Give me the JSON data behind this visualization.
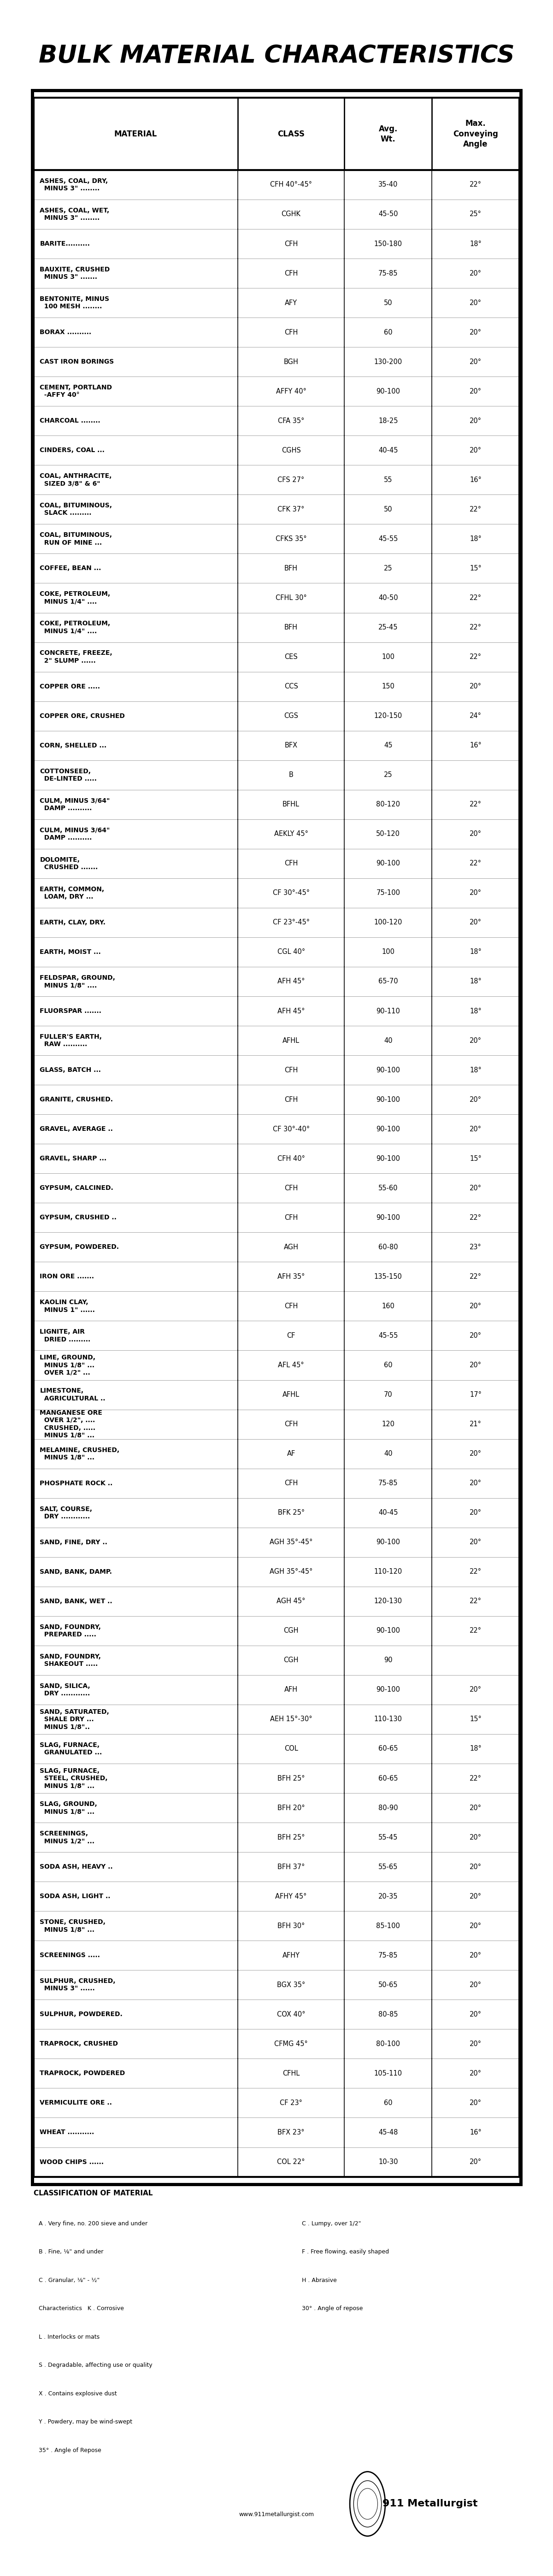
{
  "title": "BULK MATERIAL CHARACTERISTICS",
  "col_headers": [
    "MATERIAL",
    "CLASS",
    "Avg.\nWt.",
    "Max.\nConveying\nAngle"
  ],
  "rows": [
    [
      "ASHES, COAL, DRY,\n  MINUS 3\" ........",
      "CFH 40°-45°",
      "35-40",
      "22°"
    ],
    [
      "ASHES, COAL, WET,\n  MINUS 3\" ........",
      "CGHK",
      "45-50",
      "25°"
    ],
    [
      "BARITE..........",
      "CFH",
      "150-180",
      "18°"
    ],
    [
      "BAUXITE, CRUSHED\n  MINUS 3\" .......",
      "CFH",
      "75-85",
      "20°"
    ],
    [
      "BENTONITE, MINUS\n  100 MESH ........",
      "AFY",
      "50",
      "20°"
    ],
    [
      "BORAX ..........",
      "CFH",
      "60",
      "20°"
    ],
    [
      "CAST IRON BORINGS",
      "BGH",
      "130-200",
      "20°"
    ],
    [
      "CEMENT, PORTLAND\n  -AFFY 40°",
      "AFFY 40°",
      "90-100",
      "20°"
    ],
    [
      "CHARCOAL ........",
      "CFA 35°",
      "18-25",
      "20°"
    ],
    [
      "CINDERS, COAL ...",
      "CGHS",
      "40-45",
      "20°"
    ],
    [
      "COAL, ANTHRACITE,\n  SIZED 3/8\" & 6\"",
      "CFS 27°",
      "55",
      "16°"
    ],
    [
      "COAL, BITUMINOUS,\n  SLACK .........",
      "CFK 37°",
      "50",
      "22°"
    ],
    [
      "COAL, BITUMINOUS,\n  RUN OF MINE ...",
      "CFKS 35°",
      "45-55",
      "18°"
    ],
    [
      "COFFEE, BEAN ...",
      "BFH",
      "25",
      "15°"
    ],
    [
      "COKE, PETROLEUM,\n  MINUS 1/4\" ....",
      "CFHL 30°",
      "40-50",
      "22°"
    ],
    [
      "COKE, PETROLEUM,\n  MINUS 1/4\" ....",
      "BFH",
      "25-45",
      "22°"
    ],
    [
      "CONCRETE, FREEZE,\n  2\" SLUMP ......",
      "CES",
      "100",
      "22°"
    ],
    [
      "COPPER ORE .....",
      "CCS",
      "150",
      "20°"
    ],
    [
      "COPPER ORE, CRUSHED",
      "CGS",
      "120-150",
      "24°"
    ],
    [
      "CORN, SHELLED ...",
      "BFX",
      "45",
      "16°"
    ],
    [
      "COTTONSEED,\n  DE-LINTED .....",
      "B",
      "25",
      ""
    ],
    [
      "CULM, MINUS 3/64\"\n  DAMP ..........",
      "BFHL",
      "80-120",
      "22°"
    ],
    [
      "CULM, MINUS 3/64\"\n  DAMP ..........",
      "AEKLY 45°",
      "50-120",
      "20°"
    ],
    [
      "DOLOMITE,\n  CRUSHED .......",
      "CFH",
      "90-100",
      "22°"
    ],
    [
      "EARTH, COMMON,\n  LOAM, DRY ...",
      "CF 30°-45°",
      "75-100",
      "20°"
    ],
    [
      "EARTH, CLAY, DRY.",
      "CF 23°-45°",
      "100-120",
      "20°"
    ],
    [
      "EARTH, MOIST ...",
      "CGL 40°",
      "100",
      "18°"
    ],
    [
      "FELDSPAR, GROUND,\n  MINUS 1/8\" ....",
      "AFH 45°",
      "65-70",
      "18°"
    ],
    [
      "FLUORSPAR .......",
      "AFH 45°",
      "90-110",
      "18°"
    ],
    [
      "FULLER'S EARTH,\n  RAW ..........",
      "AFHL",
      "40",
      "20°"
    ],
    [
      "GLASS, BATCH ...",
      "CFH",
      "90-100",
      "18°"
    ],
    [
      "GRANITE, CRUSHED.",
      "CFH",
      "90-100",
      "20°"
    ],
    [
      "GRAVEL, AVERAGE ..",
      "CF 30°-40°",
      "90-100",
      "20°"
    ],
    [
      "GRAVEL, SHARP ...",
      "CFH 40°",
      "90-100",
      "15°"
    ],
    [
      "GYPSUM, CALCINED.",
      "CFH",
      "55-60",
      "20°"
    ],
    [
      "GYPSUM, CRUSHED ..",
      "CFH",
      "90-100",
      "22°"
    ],
    [
      "GYPSUM, POWDERED.",
      "AGH",
      "60-80",
      "23°"
    ],
    [
      "IRON ORE .......",
      "AFH 35°",
      "135-150",
      "22°"
    ],
    [
      "KAOLIN CLAY,\n  MINUS 1\" ......",
      "CFH",
      "160",
      "20°"
    ],
    [
      "LIGNITE, AIR\n  DRIED .........",
      "CF",
      "45-55",
      "20°"
    ],
    [
      "LIME, GROUND,\n  MINUS 1/8\" ...\n  OVER 1/2\" ...",
      "AFL 45°",
      "60",
      "20°"
    ],
    [
      "LIMESTONE,\n  AGRICULTURAL ..",
      "AFHL",
      "70",
      "17°"
    ],
    [
      "MANGANESE ORE\n  OVER 1/2\", ....\n  CRUSHED, .....\n  MINUS 1/8\" ...",
      "CFH",
      "120",
      "21°"
    ],
    [
      "MELAMINE, CRUSHED,\n  MINUS 1/8\" ...",
      "AF",
      "40",
      "20°"
    ],
    [
      "PHOSPHATE ROCK ..",
      "CFH",
      "75-85",
      "20°"
    ],
    [
      "SALT, COURSE,\n  DRY ............",
      "BFK 25°",
      "40-45",
      "20°"
    ],
    [
      "SAND, FINE, DRY ..",
      "AGH 35°-45°",
      "90-100",
      "20°"
    ],
    [
      "SAND, BANK, DAMP.",
      "AGH 35°-45°",
      "110-120",
      "22°"
    ],
    [
      "SAND, BANK, WET ..",
      "AGH 45°",
      "120-130",
      "22°"
    ],
    [
      "SAND, FOUNDRY,\n  PREPARED .....",
      "CGH",
      "90-100",
      "22°"
    ],
    [
      "SAND, FOUNDRY,\n  SHAKEOUT .....",
      "CGH",
      "90",
      ""
    ],
    [
      "SAND, SILICA,\n  DRY ............",
      "AFH",
      "90-100",
      "20°"
    ],
    [
      "SAND, SATURATED,\n  SHALE DRY ...\n  MINUS 1/8\"..",
      "AEH 15°-30°",
      "110-130",
      "15°"
    ],
    [
      "SLAG, FURNACE,\n  GRANULATED ...",
      "COL",
      "60-65",
      "18°"
    ],
    [
      "SLAG, FURNACE,\n  STEEL, CRUSHED,\n  MINUS 1/8\" ...",
      "BFH 25°",
      "60-65",
      "22°"
    ],
    [
      "SLAG, GROUND,\n  MINUS 1/8\" ...",
      "BFH 20°",
      "80-90",
      "20°"
    ],
    [
      "SCREENINGS,\n  MINUS 1/2\" ...",
      "BFH 25°",
      "55-45",
      "20°"
    ],
    [
      "SODA ASH, HEAVY ..",
      "BFH 37°",
      "55-65",
      "20°"
    ],
    [
      "SODA ASH, LIGHT ..",
      "AFHY 45°",
      "20-35",
      "20°"
    ],
    [
      "STONE, CRUSHED,\n  MINUS 1/8\" ...",
      "BFH 30°",
      "85-100",
      "20°"
    ],
    [
      "SCREENINGS .....",
      "AFHY",
      "75-85",
      "20°"
    ],
    [
      "SULPHUR, CRUSHED,\n  MINUS 3\" ......",
      "BGX 35°",
      "50-65",
      "20°"
    ],
    [
      "SULPHUR, POWDERED.",
      "COX 40°",
      "80-85",
      "20°"
    ],
    [
      "TRAPROCK, CRUSHED",
      "CFMG 45°",
      "80-100",
      "20°"
    ],
    [
      "TRAPROCK, POWDERED",
      "CFHL",
      "105-110",
      "20°"
    ],
    [
      "VERMICULITE ORE ..",
      "CF 23°",
      "60",
      "20°"
    ],
    [
      "WHEAT ...........",
      "BFX 23°",
      "45-48",
      "16°"
    ],
    [
      "WOOD CHIPS ......",
      "COL 22°",
      "10-30",
      "20°"
    ]
  ],
  "classification_title": "CLASSIFICATION OF MATERIAL",
  "classification_left": [
    "A . Very fine, no. 200 sieve and under",
    "B . Fine, ⅛\" and under",
    "C . Granular, ⅛\" - ½\"",
    "Characteristics   K . Corrosive",
    "L . Interlocks or mats",
    "S . Degradable, affecting use or quality",
    "X . Contains explosive dust",
    "Y . Powdery, may be wind-swept",
    "35° . Angle of Repose"
  ],
  "classification_right": [
    "C . Lumpy, over 1/2\"",
    "F . Free flowing, easily shaped",
    "H . Abrasive",
    "30° . Angle of repose"
  ],
  "website": "www.911metallurgist.com",
  "branding": "911 Metallurgist"
}
